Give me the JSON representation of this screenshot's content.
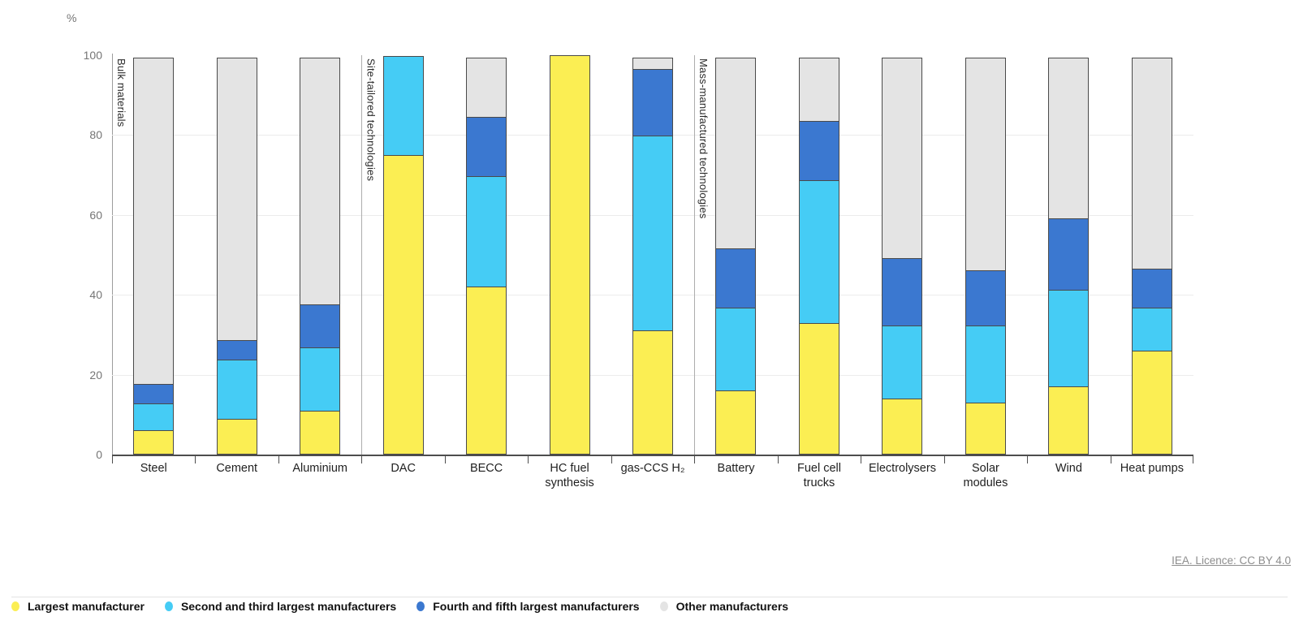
{
  "chart_data": {
    "type": "bar",
    "stacked": true,
    "title": "",
    "unit": "%",
    "ylim": [
      0,
      100
    ],
    "yticks": [
      0,
      20,
      40,
      60,
      80,
      100
    ],
    "grid": "horizontal",
    "categories": [
      "Steel",
      "Cement",
      "Aluminium",
      "DAC",
      "BECC",
      "HC fuel\nsynthesis",
      "gas-CCS H₂",
      "Battery",
      "Fuel cell\ntrucks",
      "Electrolysers",
      "Solar\nmodules",
      "Wind",
      "Heat pumps"
    ],
    "groups": [
      {
        "label": "Bulk materials",
        "start": 0,
        "span": 3
      },
      {
        "label": "Site-tailored technologies",
        "start": 3,
        "span": 4
      },
      {
        "label": "Mass-manufactured technologies",
        "start": 7,
        "span": 6
      }
    ],
    "series": [
      {
        "name": "Largest manufacturer",
        "color": "#FBEE53",
        "values": [
          6,
          9,
          11,
          75,
          42,
          100,
          31,
          16,
          33,
          14,
          13,
          17,
          26
        ]
      },
      {
        "name": "Second and third largest manufacturers",
        "color": "#45CCF5",
        "values": [
          7,
          15,
          16,
          25,
          28,
          0,
          49,
          21,
          36,
          18.5,
          19.5,
          24.5,
          11
        ]
      },
      {
        "name": "Fourth and fifth largest manufacturers",
        "color": "#3B78D0",
        "values": [
          5,
          5,
          11,
          0,
          15,
          0,
          17,
          15,
          15,
          17,
          14,
          18,
          10
        ]
      },
      {
        "name": "Other manufacturers",
        "color": "#E4E4E4",
        "values": [
          82,
          71,
          62,
          0,
          15,
          0,
          3,
          48,
          16,
          50.5,
          53.5,
          40.5,
          53
        ]
      }
    ],
    "legend_position": "bottom-left"
  },
  "footer": {
    "licence": "IEA. Licence: CC BY 4.0"
  }
}
